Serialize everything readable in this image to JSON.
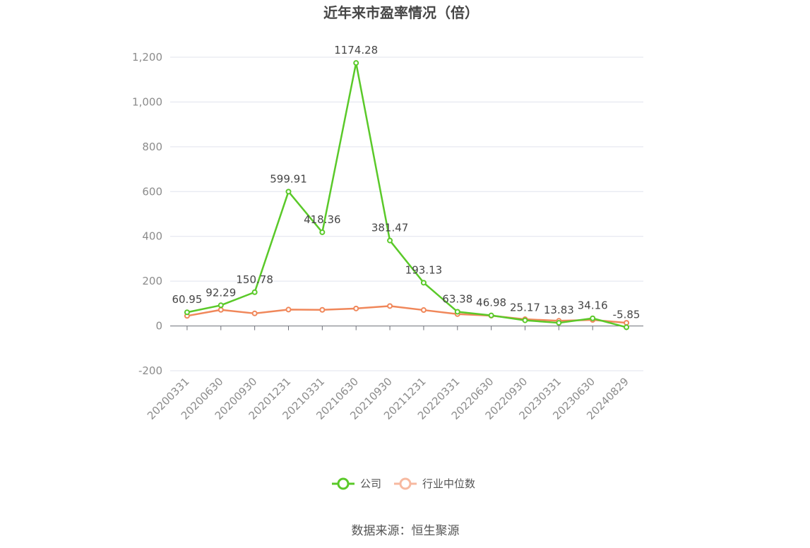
{
  "chart_data": {
    "type": "line",
    "title": "近年来市盈率情况（倍）",
    "categories": [
      "20200331",
      "20200630",
      "20200930",
      "20201231",
      "20210331",
      "20210630",
      "20210930",
      "20211231",
      "20220331",
      "20220630",
      "20220930",
      "20230331",
      "20230630",
      "20240829"
    ],
    "series": [
      {
        "name": "公司",
        "color": "#5ac929",
        "values": [
          60.95,
          92.29,
          150.78,
          599.91,
          418.36,
          1174.28,
          381.47,
          193.13,
          63.38,
          46.98,
          25.17,
          13.83,
          34.16,
          -5.85
        ],
        "labels": [
          "60.95",
          "92.29",
          "150.78",
          "599.91",
          "418.36",
          "1174.28",
          "381.47",
          "193.13",
          "63.38",
          "46.98",
          "25.17",
          "13.83",
          "34.16",
          "-5.85"
        ]
      },
      {
        "name": "行业中位数",
        "color": "#f0875a",
        "values": [
          45,
          72,
          56,
          73,
          72,
          78,
          89,
          71,
          53,
          46,
          30,
          23,
          27,
          14
        ]
      }
    ],
    "ylim": [
      -200,
      1200
    ],
    "yticks": [
      -200,
      0,
      200,
      400,
      600,
      800,
      1000,
      1200
    ],
    "ytick_labels": [
      "-200",
      "0",
      "200",
      "400",
      "600",
      "800",
      "1,000",
      "1,200"
    ],
    "grid": true,
    "legend_position": "bottom-center"
  },
  "source": "数据来源：恒生聚源"
}
